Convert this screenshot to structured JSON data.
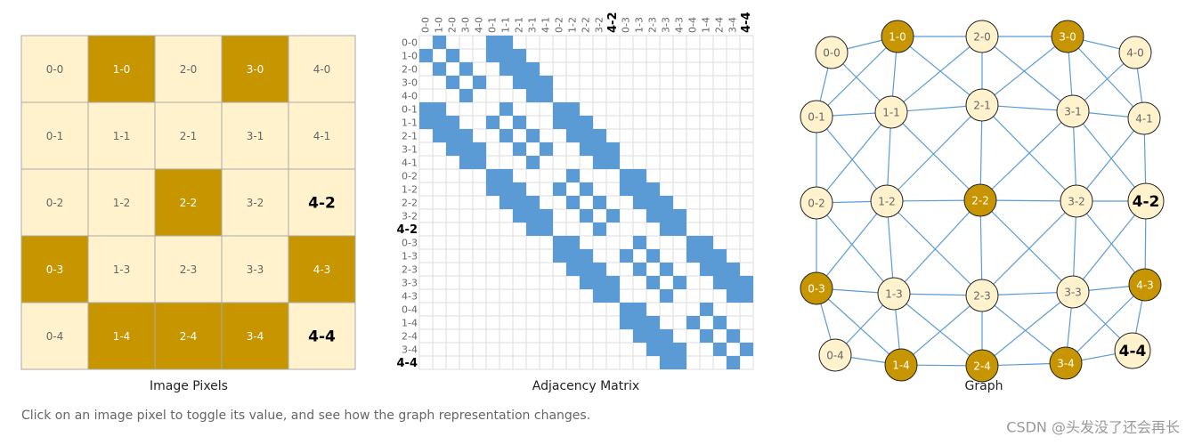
{
  "captions": {
    "pixels": "Image Pixels",
    "matrix": "Adjacency Matrix",
    "graph": "Graph"
  },
  "instruction": "Click on an image pixel to toggle its value, and see how the graph representation changes.",
  "watermark": "CSDN @头发没了还会再长",
  "colors": {
    "off": "#fff2cc",
    "on": "#c79500",
    "edge": "#5b9bd5"
  },
  "nodes": [
    {
      "label": "0-0",
      "value": 0
    },
    {
      "label": "1-0",
      "value": 1
    },
    {
      "label": "2-0",
      "value": 0
    },
    {
      "label": "3-0",
      "value": 1
    },
    {
      "label": "4-0",
      "value": 0
    },
    {
      "label": "0-1",
      "value": 0
    },
    {
      "label": "1-1",
      "value": 0
    },
    {
      "label": "2-1",
      "value": 0
    },
    {
      "label": "3-1",
      "value": 0
    },
    {
      "label": "4-1",
      "value": 0
    },
    {
      "label": "0-2",
      "value": 0
    },
    {
      "label": "1-2",
      "value": 0
    },
    {
      "label": "2-2",
      "value": 1
    },
    {
      "label": "3-2",
      "value": 0
    },
    {
      "label": "4-2",
      "value": 0,
      "selected": true
    },
    {
      "label": "0-3",
      "value": 1
    },
    {
      "label": "1-3",
      "value": 0
    },
    {
      "label": "2-3",
      "value": 0
    },
    {
      "label": "3-3",
      "value": 0
    },
    {
      "label": "4-3",
      "value": 1
    },
    {
      "label": "0-4",
      "value": 0
    },
    {
      "label": "1-4",
      "value": 1
    },
    {
      "label": "2-4",
      "value": 1
    },
    {
      "label": "3-4",
      "value": 1
    },
    {
      "label": "4-4",
      "value": 0,
      "selected": true
    }
  ],
  "edges": [
    [
      0,
      1
    ],
    [
      0,
      5
    ],
    [
      0,
      6
    ],
    [
      1,
      2
    ],
    [
      1,
      5
    ],
    [
      1,
      6
    ],
    [
      1,
      7
    ],
    [
      2,
      3
    ],
    [
      2,
      6
    ],
    [
      2,
      7
    ],
    [
      2,
      8
    ],
    [
      3,
      4
    ],
    [
      3,
      7
    ],
    [
      3,
      8
    ],
    [
      3,
      9
    ],
    [
      4,
      8
    ],
    [
      4,
      9
    ],
    [
      5,
      6
    ],
    [
      5,
      10
    ],
    [
      5,
      11
    ],
    [
      6,
      7
    ],
    [
      6,
      10
    ],
    [
      6,
      11
    ],
    [
      6,
      12
    ],
    [
      7,
      8
    ],
    [
      7,
      11
    ],
    [
      7,
      12
    ],
    [
      7,
      13
    ],
    [
      8,
      9
    ],
    [
      8,
      12
    ],
    [
      8,
      13
    ],
    [
      8,
      14
    ],
    [
      9,
      13
    ],
    [
      9,
      14
    ],
    [
      10,
      11
    ],
    [
      10,
      15
    ],
    [
      10,
      16
    ],
    [
      11,
      12
    ],
    [
      11,
      15
    ],
    [
      11,
      16
    ],
    [
      11,
      17
    ],
    [
      12,
      13
    ],
    [
      12,
      16
    ],
    [
      12,
      17
    ],
    [
      12,
      18
    ],
    [
      13,
      14
    ],
    [
      13,
      17
    ],
    [
      13,
      18
    ],
    [
      13,
      19
    ],
    [
      14,
      18
    ],
    [
      14,
      19
    ],
    [
      15,
      16
    ],
    [
      15,
      20
    ],
    [
      15,
      21
    ],
    [
      16,
      17
    ],
    [
      16,
      20
    ],
    [
      16,
      21
    ],
    [
      16,
      22
    ],
    [
      17,
      18
    ],
    [
      17,
      21
    ],
    [
      17,
      22
    ],
    [
      17,
      23
    ],
    [
      18,
      19
    ],
    [
      18,
      22
    ],
    [
      18,
      23
    ],
    [
      18,
      24
    ],
    [
      19,
      23
    ],
    [
      19,
      24
    ],
    [
      20,
      21
    ],
    [
      21,
      22
    ],
    [
      22,
      23
    ],
    [
      23,
      24
    ]
  ]
}
